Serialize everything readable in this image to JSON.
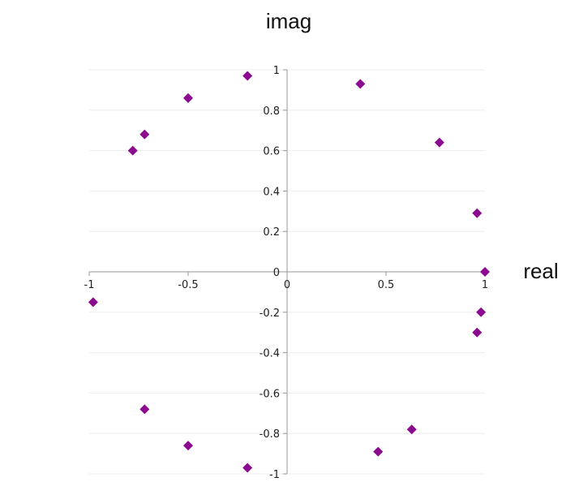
{
  "chart_data": {
    "type": "scatter",
    "xlabel": "real",
    "ylabel": "imag",
    "xlim": [
      -1,
      1
    ],
    "ylim": [
      -1,
      1
    ],
    "x_ticks": [
      "-1",
      "-0.5",
      "0",
      "0.5",
      "1"
    ],
    "y_ticks": [
      "1",
      "0.8",
      "0.6",
      "0.4",
      "0.2",
      "0",
      "-0.2",
      "-0.4",
      "-0.6",
      "-0.8",
      "-1"
    ],
    "grid": "horizontal",
    "colors": {
      "marker": "#8b0a8f",
      "axis": "#9a9a9a",
      "grid": "#eeeeee"
    },
    "series": [
      {
        "points": [
          {
            "x": -0.2,
            "y": 0.97
          },
          {
            "x": 0.37,
            "y": 0.93
          },
          {
            "x": -0.5,
            "y": 0.86
          },
          {
            "x": -0.72,
            "y": 0.68
          },
          {
            "x": -0.78,
            "y": 0.6
          },
          {
            "x": 0.77,
            "y": 0.64
          },
          {
            "x": 0.96,
            "y": 0.29
          },
          {
            "x": 1.0,
            "y": 0.0
          },
          {
            "x": -0.98,
            "y": -0.15
          },
          {
            "x": 0.98,
            "y": -0.2
          },
          {
            "x": 0.96,
            "y": -0.3
          },
          {
            "x": -0.72,
            "y": -0.68
          },
          {
            "x": -0.5,
            "y": -0.86
          },
          {
            "x": 0.63,
            "y": -0.78
          },
          {
            "x": 0.46,
            "y": -0.89
          },
          {
            "x": -0.2,
            "y": -0.97
          }
        ]
      }
    ]
  }
}
